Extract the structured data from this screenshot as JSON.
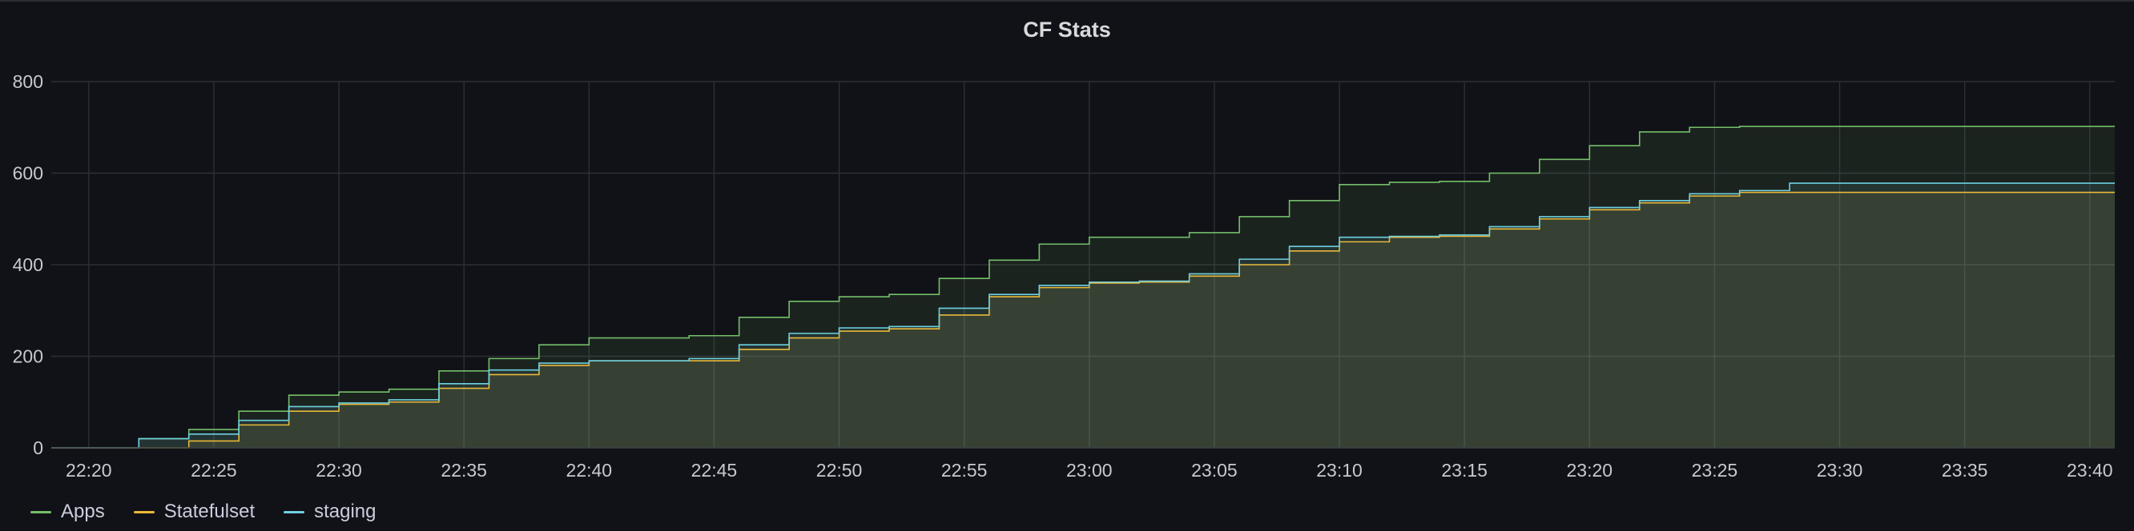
{
  "panel": {
    "title": "CF Stats"
  },
  "chart_data": {
    "type": "area",
    "title": "CF Stats",
    "xlabel": "",
    "ylabel": "",
    "x_ticks": [
      "22:20",
      "22:25",
      "22:30",
      "22:35",
      "22:40",
      "22:45",
      "22:50",
      "22:55",
      "23:00",
      "23:05",
      "23:10",
      "23:15",
      "23:20",
      "23:25",
      "23:30",
      "23:35",
      "23:40"
    ],
    "y_ticks": [
      "0",
      "200",
      "400",
      "600",
      "800"
    ],
    "xlim": [
      "22:18:30",
      "23:41:00"
    ],
    "ylim": [
      0,
      800
    ],
    "grid": true,
    "legend_position": "bottom-left",
    "x": [
      "22:18:30",
      "22:20:00",
      "22:22:00",
      "22:24:00",
      "22:26:00",
      "22:28:00",
      "22:30:00",
      "22:32:00",
      "22:34:00",
      "22:36:00",
      "22:38:00",
      "22:40:00",
      "22:42:00",
      "22:44:00",
      "22:46:00",
      "22:48:00",
      "22:50:00",
      "22:52:00",
      "22:54:00",
      "22:56:00",
      "22:58:00",
      "23:00:00",
      "23:02:00",
      "23:04:00",
      "23:06:00",
      "23:08:00",
      "23:10:00",
      "23:12:00",
      "23:14:00",
      "23:16:00",
      "23:18:00",
      "23:20:00",
      "23:22:00",
      "23:24:00",
      "23:26:00",
      "23:28:00",
      "23:30:00",
      "23:35:00",
      "23:41:00"
    ],
    "series": [
      {
        "name": "Apps",
        "color": "#73bf69",
        "values": [
          0,
          0,
          20,
          40,
          80,
          115,
          122,
          128,
          168,
          195,
          225,
          240,
          240,
          245,
          285,
          320,
          330,
          335,
          370,
          410,
          445,
          460,
          460,
          470,
          505,
          540,
          575,
          580,
          582,
          600,
          630,
          660,
          690,
          700,
          702,
          702,
          702,
          702,
          702
        ]
      },
      {
        "name": "Statefulset",
        "color": "#eab839",
        "values": [
          0,
          0,
          0,
          15,
          50,
          80,
          95,
          100,
          130,
          160,
          180,
          190,
          190,
          190,
          215,
          240,
          255,
          260,
          290,
          330,
          350,
          360,
          362,
          375,
          400,
          430,
          450,
          460,
          462,
          478,
          500,
          520,
          535,
          550,
          558,
          558,
          558,
          558,
          558
        ]
      },
      {
        "name": "staging",
        "color": "#6ed0e0",
        "values": [
          0,
          0,
          20,
          30,
          60,
          90,
          98,
          105,
          140,
          170,
          185,
          190,
          190,
          195,
          225,
          250,
          262,
          265,
          305,
          335,
          355,
          362,
          364,
          380,
          412,
          440,
          460,
          462,
          465,
          483,
          505,
          525,
          540,
          555,
          562,
          578,
          578,
          578,
          578
        ]
      }
    ]
  }
}
